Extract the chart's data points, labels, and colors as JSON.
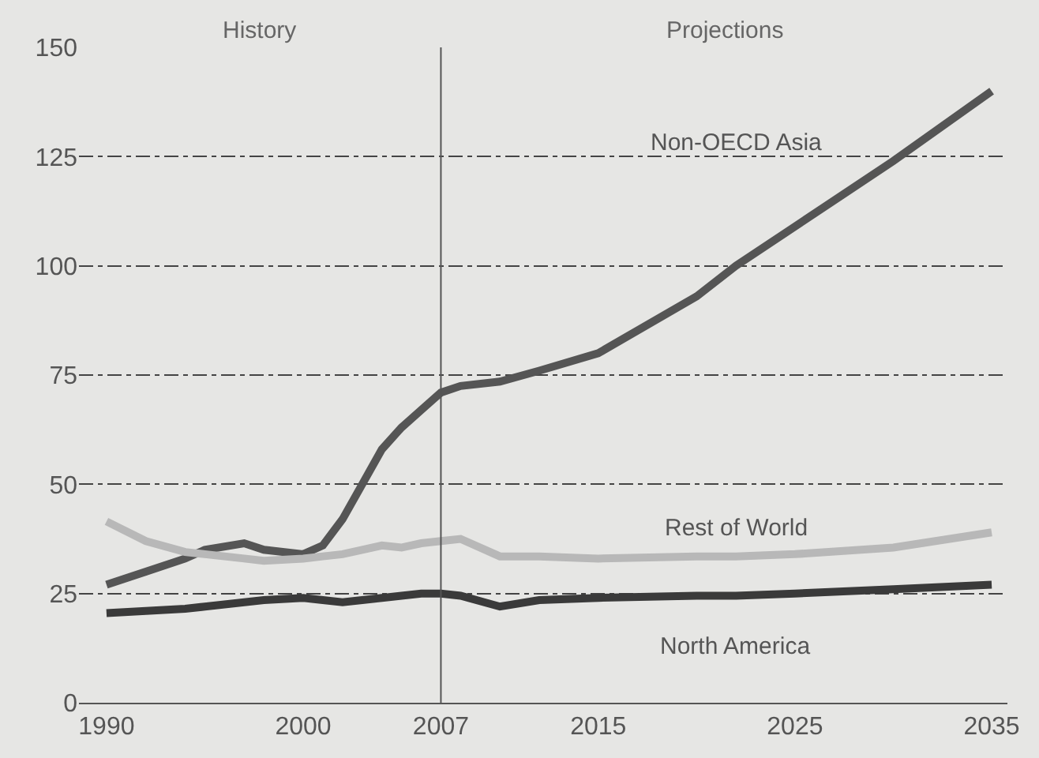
{
  "chart_data": {
    "type": "line",
    "x": [
      1990,
      1992,
      1994,
      1995,
      1997,
      1998,
      2000,
      2001,
      2002,
      2003,
      2004,
      2005,
      2006,
      2007,
      2008,
      2010,
      2012,
      2015,
      2020,
      2022,
      2025,
      2030,
      2035
    ],
    "series": [
      {
        "name": "Non-OECD Asia",
        "color": "#555555",
        "values": [
          27,
          30,
          33,
          35,
          36.5,
          35,
          34,
          36,
          42,
          50,
          58,
          63,
          67,
          71,
          72.5,
          73.5,
          76,
          80,
          93,
          100,
          109,
          124,
          140
        ]
      },
      {
        "name": "Rest of World",
        "color": "#b8b8b8",
        "values": [
          41.5,
          37,
          34.5,
          34,
          33,
          32.5,
          33,
          33.5,
          34,
          35,
          36,
          35.5,
          36.5,
          37,
          37.5,
          33.5,
          33.5,
          33,
          33.5,
          33.5,
          34,
          35.5,
          39
        ]
      },
      {
        "name": "North America",
        "color": "#3a3a3a",
        "values": [
          20.5,
          21,
          21.5,
          22,
          23,
          23.5,
          24,
          23.5,
          23,
          23.5,
          24,
          24.5,
          25,
          25,
          24.5,
          22,
          23.5,
          24,
          24.5,
          24.5,
          25,
          26,
          27
        ]
      }
    ],
    "xlim": [
      1988.6,
      2035.8
    ],
    "ylim": [
      0,
      150
    ],
    "xticks": [
      1990,
      2000,
      2007,
      2015,
      2025,
      2035
    ],
    "yticks": [
      0,
      25,
      50,
      75,
      100,
      125,
      150
    ],
    "grid": "y",
    "legend": false,
    "marker": "none",
    "line_style": "solid",
    "ref_lines": [
      {
        "axis": "x",
        "value": 2007,
        "color": "#555555"
      }
    ],
    "annotations": [
      "History",
      "Projections"
    ]
  }
}
